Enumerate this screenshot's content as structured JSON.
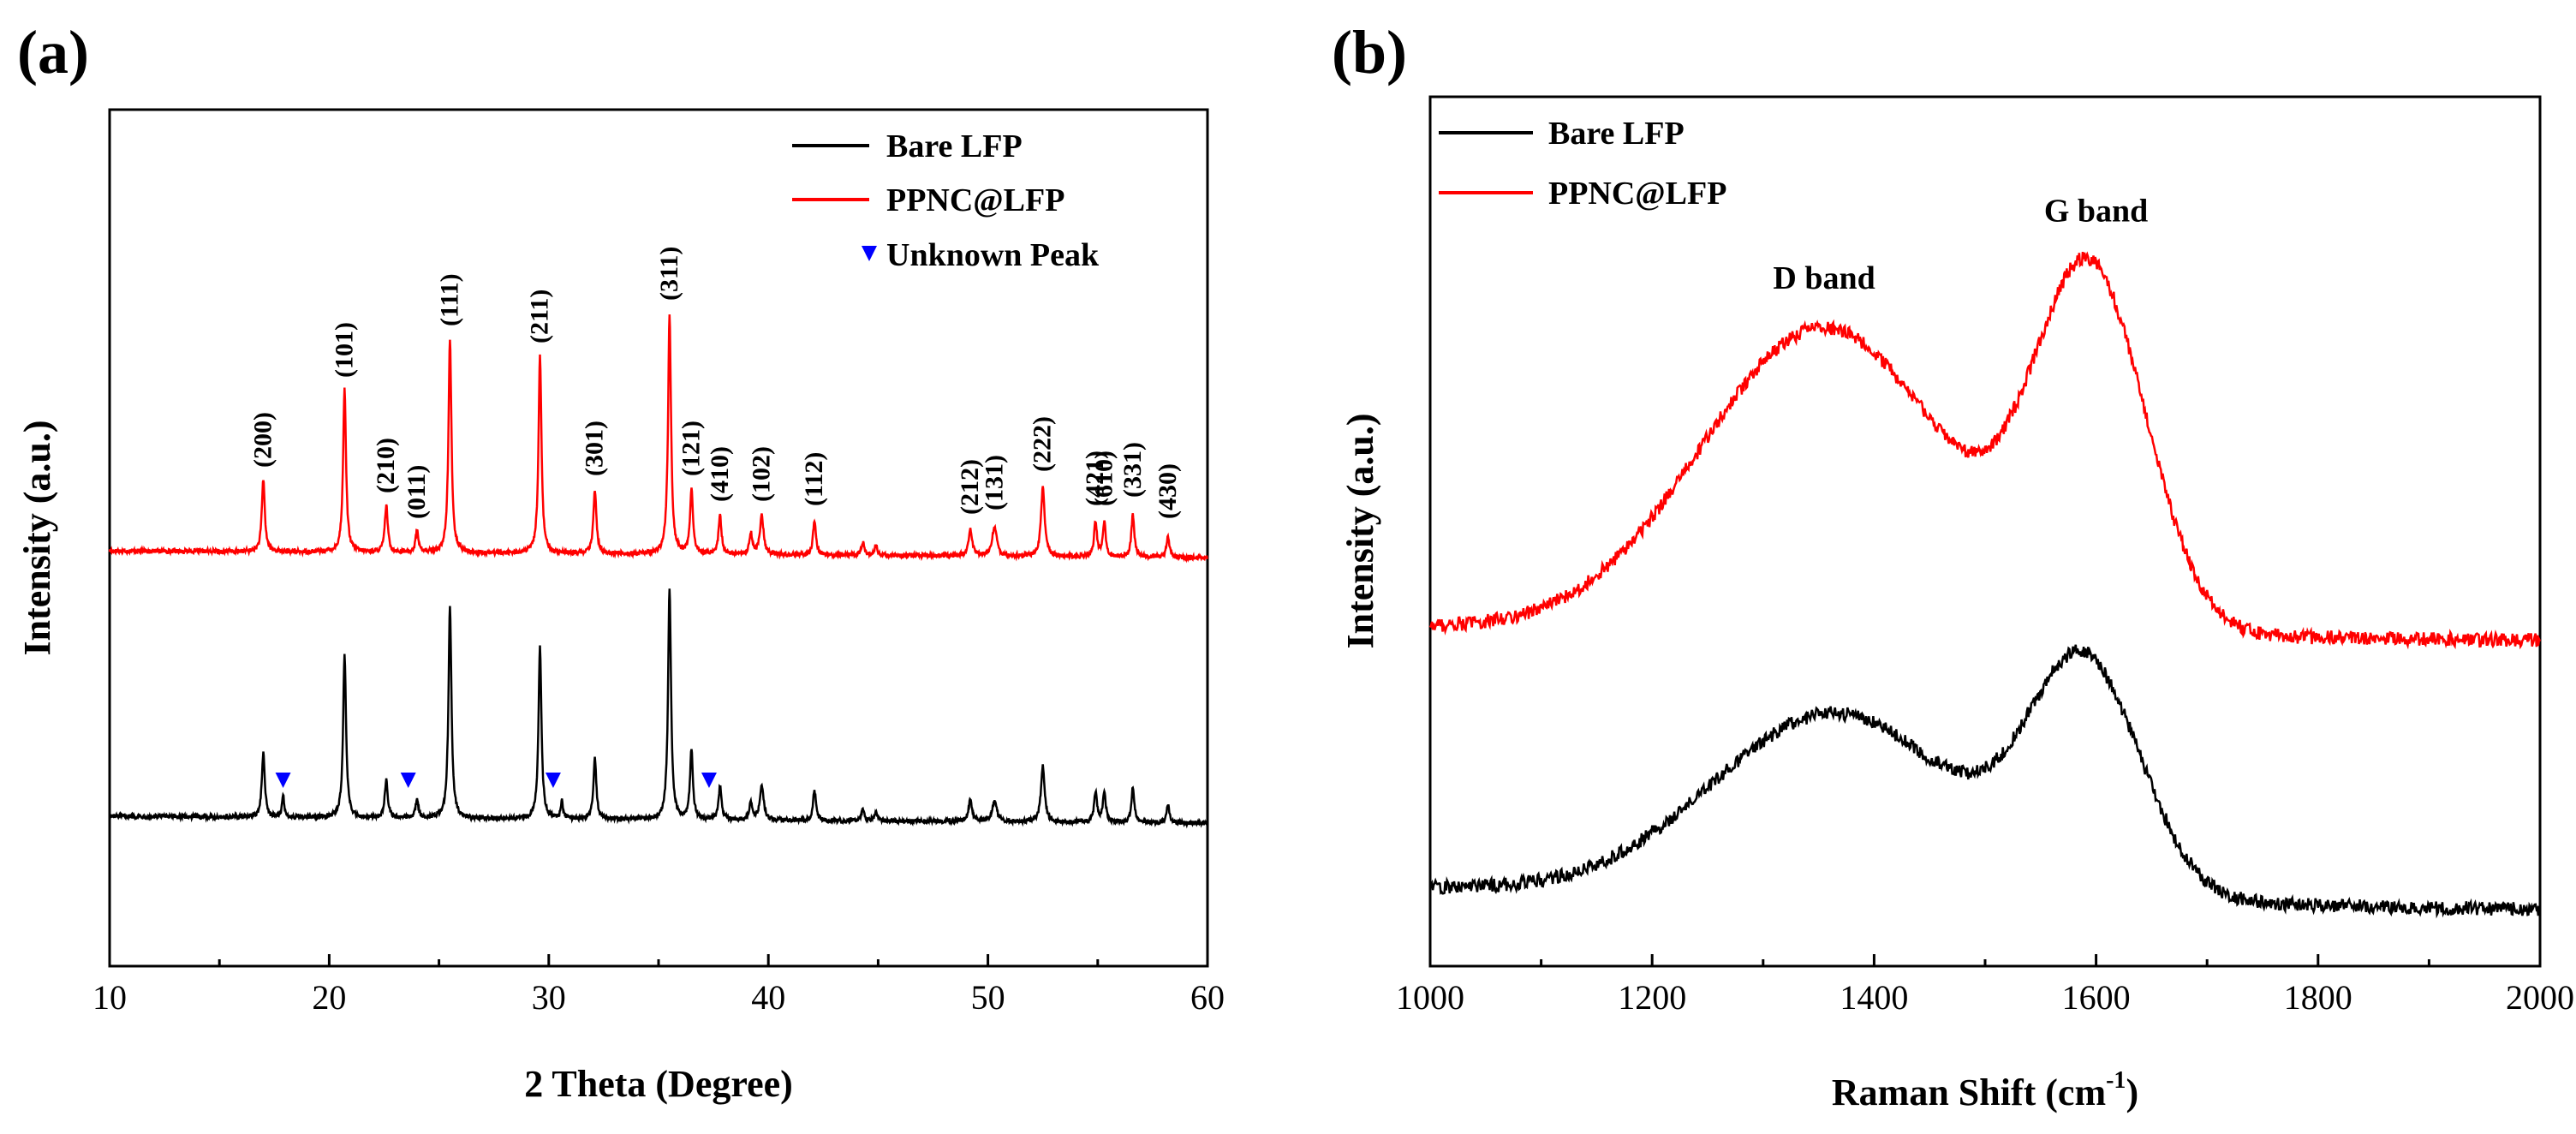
{
  "colors": {
    "red": "#ff0000",
    "black": "#000000",
    "marker": "#0000ff"
  },
  "chart_data": [
    {
      "panel": "(a)",
      "type": "line",
      "title": "",
      "xlabel": "2 Theta (Degree)",
      "ylabel": "Intensity (a.u.)",
      "xlim": [
        10,
        60
      ],
      "ylim": [
        0,
        100
      ],
      "xticks": [
        10,
        20,
        30,
        40,
        50,
        60
      ],
      "legend": {
        "placement": "top-right",
        "entries": [
          {
            "label": "Bare LFP",
            "kind": "line",
            "color": "#000000"
          },
          {
            "label": "PPNC@LFP",
            "kind": "line",
            "color": "#ff0000"
          },
          {
            "label": "Unknown Peak",
            "kind": "marker",
            "color": "#0000ff"
          }
        ]
      },
      "series": [
        {
          "name": "PPNC@LFP",
          "color": "#ff0000",
          "baseline": 48.5,
          "noise": 0.25,
          "peaks": [
            {
              "x": 17.0,
              "h": 8.5,
              "w": 0.08
            },
            {
              "x": 20.7,
              "h": 19,
              "w": 0.08
            },
            {
              "x": 22.6,
              "h": 5.5,
              "w": 0.08
            },
            {
              "x": 24.0,
              "h": 2.5,
              "w": 0.08
            },
            {
              "x": 25.5,
              "h": 25,
              "w": 0.08
            },
            {
              "x": 29.6,
              "h": 23,
              "w": 0.08
            },
            {
              "x": 32.1,
              "h": 7.5,
              "w": 0.08
            },
            {
              "x": 35.5,
              "h": 28,
              "w": 0.08
            },
            {
              "x": 36.5,
              "h": 7.5,
              "w": 0.08
            },
            {
              "x": 37.8,
              "h": 4.5,
              "w": 0.08
            },
            {
              "x": 39.2,
              "h": 2.5,
              "w": 0.08
            },
            {
              "x": 39.7,
              "h": 4.5,
              "w": 0.1
            },
            {
              "x": 42.1,
              "h": 4.0,
              "w": 0.08
            },
            {
              "x": 44.3,
              "h": 1.5,
              "w": 0.08
            },
            {
              "x": 44.9,
              "h": 1.0,
              "w": 0.08
            },
            {
              "x": 49.2,
              "h": 3.0,
              "w": 0.1
            },
            {
              "x": 50.3,
              "h": 3.5,
              "w": 0.12
            },
            {
              "x": 52.5,
              "h": 8.0,
              "w": 0.1
            },
            {
              "x": 54.9,
              "h": 4.0,
              "w": 0.08
            },
            {
              "x": 55.3,
              "h": 4.0,
              "w": 0.08
            },
            {
              "x": 56.6,
              "h": 5.0,
              "w": 0.08
            },
            {
              "x": 58.2,
              "h": 2.5,
              "w": 0.08
            }
          ]
        },
        {
          "name": "Bare LFP",
          "color": "#000000",
          "baseline": 17.5,
          "noise": 0.25,
          "peaks": [
            {
              "x": 17.0,
              "h": 7.5,
              "w": 0.08
            },
            {
              "x": 17.9,
              "h": 2.5,
              "w": 0.06
            },
            {
              "x": 20.7,
              "h": 19,
              "w": 0.08
            },
            {
              "x": 22.6,
              "h": 4.5,
              "w": 0.08
            },
            {
              "x": 24.0,
              "h": 2.0,
              "w": 0.08
            },
            {
              "x": 25.5,
              "h": 25,
              "w": 0.08
            },
            {
              "x": 29.6,
              "h": 20,
              "w": 0.08
            },
            {
              "x": 30.6,
              "h": 2.0,
              "w": 0.06
            },
            {
              "x": 32.1,
              "h": 7.0,
              "w": 0.08
            },
            {
              "x": 35.5,
              "h": 27,
              "w": 0.08
            },
            {
              "x": 36.5,
              "h": 8.0,
              "w": 0.08
            },
            {
              "x": 37.8,
              "h": 4.0,
              "w": 0.08
            },
            {
              "x": 39.2,
              "h": 2.0,
              "w": 0.08
            },
            {
              "x": 39.7,
              "h": 4.0,
              "w": 0.1
            },
            {
              "x": 42.1,
              "h": 3.5,
              "w": 0.08
            },
            {
              "x": 44.3,
              "h": 1.2,
              "w": 0.08
            },
            {
              "x": 44.9,
              "h": 1.0,
              "w": 0.08
            },
            {
              "x": 49.2,
              "h": 2.5,
              "w": 0.1
            },
            {
              "x": 50.3,
              "h": 2.5,
              "w": 0.12
            },
            {
              "x": 52.5,
              "h": 6.5,
              "w": 0.1
            },
            {
              "x": 54.9,
              "h": 3.5,
              "w": 0.08
            },
            {
              "x": 55.3,
              "h": 3.5,
              "w": 0.08
            },
            {
              "x": 56.6,
              "h": 4.0,
              "w": 0.08
            },
            {
              "x": 58.2,
              "h": 2.0,
              "w": 0.08
            }
          ]
        }
      ],
      "annotations": [
        {
          "x": 17.0,
          "label": "(200)"
        },
        {
          "x": 20.7,
          "label": "(101)"
        },
        {
          "x": 22.6,
          "label": "(210)"
        },
        {
          "x": 24.0,
          "label": "(011)"
        },
        {
          "x": 25.5,
          "label": "(111)"
        },
        {
          "x": 29.6,
          "label": "(211)"
        },
        {
          "x": 32.1,
          "label": "(301)"
        },
        {
          "x": 35.5,
          "label": "(311)"
        },
        {
          "x": 36.5,
          "label": "(121)"
        },
        {
          "x": 37.8,
          "label": "(410)"
        },
        {
          "x": 39.7,
          "label": "(102)"
        },
        {
          "x": 42.1,
          "label": "(112)"
        },
        {
          "x": 49.2,
          "label": "(212)"
        },
        {
          "x": 50.3,
          "label": "(131)"
        },
        {
          "x": 52.5,
          "label": "(222)"
        },
        {
          "x": 54.9,
          "label": "(421)"
        },
        {
          "x": 55.3,
          "label": "(610)"
        },
        {
          "x": 56.6,
          "label": "(331)"
        },
        {
          "x": 58.2,
          "label": "(430)"
        }
      ],
      "unknown_peaks": [
        17.9,
        23.6,
        30.2,
        37.3
      ]
    },
    {
      "panel": "(b)",
      "type": "line",
      "title": "",
      "xlabel": "Raman Shift (cm",
      "xlabel_sup": "-1",
      "xlabel_tail": ")",
      "ylabel": "Intensity (a.u.)",
      "xlim": [
        1000,
        2000
      ],
      "ylim": [
        0,
        100
      ],
      "xticks": [
        1000,
        1200,
        1400,
        1600,
        1800,
        2000
      ],
      "legend": {
        "placement": "top-left",
        "entries": [
          {
            "label": "Bare LFP",
            "kind": "line",
            "color": "#000000"
          },
          {
            "label": "PPNC@LFP",
            "kind": "line",
            "color": "#ff0000"
          }
        ]
      },
      "series": [
        {
          "name": "PPNC@LFP",
          "color": "#ff0000",
          "baseline_start": 39,
          "baseline_end": 37.5,
          "noise": 0.8,
          "bands": [
            {
              "x": 1355,
              "h": 35,
              "w": 110
            },
            {
              "x": 1595,
              "h": 40,
              "w": 50
            }
          ]
        },
        {
          "name": "Bare LFP",
          "color": "#000000",
          "baseline_start": 9,
          "baseline_end": 6.5,
          "noise": 0.8,
          "bands": [
            {
              "x": 1365,
              "h": 21,
              "w": 110
            },
            {
              "x": 1590,
              "h": 26,
              "w": 50
            }
          ]
        }
      ],
      "annotations": [
        {
          "x": 1355,
          "label": "D band"
        },
        {
          "x": 1600,
          "label": "G band"
        }
      ]
    }
  ]
}
